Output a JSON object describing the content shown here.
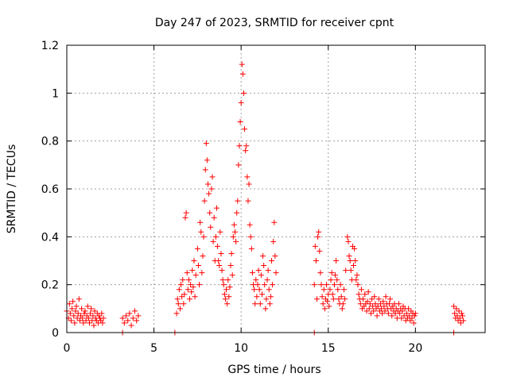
{
  "chart_data": {
    "type": "scatter",
    "title": "Day 247 of 2023, SRMTID for receiver cpnt",
    "xlabel": "GPS time / hours",
    "ylabel": "SRMTID / TECUs",
    "xlim": [
      0,
      24
    ],
    "ylim": [
      0,
      1.2
    ],
    "xticks": [
      0,
      5,
      10,
      15,
      20
    ],
    "xtick_labels": [
      "0",
      "5",
      "10",
      "15",
      "20"
    ],
    "yticks": [
      0,
      0.2,
      0.4,
      0.6,
      0.8,
      1.0,
      1.2
    ],
    "ytick_labels": [
      "0",
      "0.2",
      "0.4",
      "0.6",
      "0.8",
      "1",
      "1.2"
    ],
    "grid": true,
    "marker": "+",
    "series": [
      {
        "name": "SRMTID",
        "color": "#ff0000",
        "points": [
          [
            0.0,
            0.09
          ],
          [
            0.1,
            0.06
          ],
          [
            0.15,
            0.12
          ],
          [
            0.2,
            0.08
          ],
          [
            0.25,
            0.05
          ],
          [
            0.3,
            0.1
          ],
          [
            0.35,
            0.13
          ],
          [
            0.4,
            0.07
          ],
          [
            0.45,
            0.04
          ],
          [
            0.5,
            0.09
          ],
          [
            0.55,
            0.11
          ],
          [
            0.6,
            0.06
          ],
          [
            0.65,
            0.08
          ],
          [
            0.7,
            0.14
          ],
          [
            0.75,
            0.05
          ],
          [
            0.8,
            0.07
          ],
          [
            0.85,
            0.1
          ],
          [
            0.9,
            0.06
          ],
          [
            0.95,
            0.04
          ],
          [
            1.0,
            0.08
          ],
          [
            1.05,
            0.09
          ],
          [
            1.1,
            0.05
          ],
          [
            1.15,
            0.07
          ],
          [
            1.2,
            0.11
          ],
          [
            1.25,
            0.06
          ],
          [
            1.3,
            0.04
          ],
          [
            1.35,
            0.08
          ],
          [
            1.4,
            0.1
          ],
          [
            1.45,
            0.05
          ],
          [
            1.5,
            0.07
          ],
          [
            1.55,
            0.03
          ],
          [
            1.6,
            0.09
          ],
          [
            1.65,
            0.06
          ],
          [
            1.7,
            0.05
          ],
          [
            1.75,
            0.08
          ],
          [
            1.8,
            0.04
          ],
          [
            1.85,
            0.07
          ],
          [
            1.9,
            0.06
          ],
          [
            1.95,
            0.05
          ],
          [
            2.0,
            0.08
          ],
          [
            2.05,
            0.04
          ],
          [
            2.1,
            0.06
          ],
          [
            3.2,
            0.0
          ],
          [
            3.2,
            0.06
          ],
          [
            3.3,
            0.04
          ],
          [
            3.4,
            0.07
          ],
          [
            3.5,
            0.05
          ],
          [
            3.6,
            0.08
          ],
          [
            3.7,
            0.03
          ],
          [
            3.8,
            0.06
          ],
          [
            3.9,
            0.09
          ],
          [
            4.0,
            0.05
          ],
          [
            4.1,
            0.07
          ],
          [
            6.2,
            0.0
          ],
          [
            6.3,
            0.08
          ],
          [
            6.35,
            0.14
          ],
          [
            6.4,
            0.12
          ],
          [
            6.45,
            0.18
          ],
          [
            6.5,
            0.1
          ],
          [
            6.55,
            0.2
          ],
          [
            6.6,
            0.15
          ],
          [
            6.65,
            0.22
          ],
          [
            6.7,
            0.12
          ],
          [
            6.75,
            0.16
          ],
          [
            6.8,
            0.48
          ],
          [
            6.85,
            0.5
          ],
          [
            6.9,
            0.25
          ],
          [
            6.95,
            0.18
          ],
          [
            7.0,
            0.22
          ],
          [
            7.05,
            0.14
          ],
          [
            7.1,
            0.2
          ],
          [
            7.15,
            0.17
          ],
          [
            7.2,
            0.26
          ],
          [
            7.25,
            0.19
          ],
          [
            7.3,
            0.3
          ],
          [
            7.35,
            0.15
          ],
          [
            7.4,
            0.24
          ],
          [
            7.5,
            0.35
          ],
          [
            7.55,
            0.28
          ],
          [
            7.6,
            0.2
          ],
          [
            7.65,
            0.46
          ],
          [
            7.7,
            0.42
          ],
          [
            7.75,
            0.25
          ],
          [
            7.8,
            0.32
          ],
          [
            7.85,
            0.4
          ],
          [
            7.9,
            0.55
          ],
          [
            7.95,
            0.68
          ],
          [
            8.0,
            0.79
          ],
          [
            8.05,
            0.72
          ],
          [
            8.1,
            0.62
          ],
          [
            8.15,
            0.58
          ],
          [
            8.2,
            0.5
          ],
          [
            8.25,
            0.44
          ],
          [
            8.3,
            0.6
          ],
          [
            8.35,
            0.65
          ],
          [
            8.4,
            0.38
          ],
          [
            8.45,
            0.48
          ],
          [
            8.5,
            0.3
          ],
          [
            8.55,
            0.4
          ],
          [
            8.6,
            0.52
          ],
          [
            8.65,
            0.36
          ],
          [
            8.7,
            0.3
          ],
          [
            8.75,
            0.28
          ],
          [
            8.8,
            0.42
          ],
          [
            8.85,
            0.33
          ],
          [
            8.9,
            0.26
          ],
          [
            8.95,
            0.22
          ],
          [
            9.0,
            0.2
          ],
          [
            9.05,
            0.16
          ],
          [
            9.1,
            0.14
          ],
          [
            9.15,
            0.18
          ],
          [
            9.2,
            0.12
          ],
          [
            9.25,
            0.22
          ],
          [
            9.3,
            0.15
          ],
          [
            9.35,
            0.19
          ],
          [
            9.4,
            0.28
          ],
          [
            9.45,
            0.33
          ],
          [
            9.5,
            0.24
          ],
          [
            9.55,
            0.4
          ],
          [
            9.6,
            0.45
          ],
          [
            9.65,
            0.42
          ],
          [
            9.7,
            0.38
          ],
          [
            9.75,
            0.5
          ],
          [
            9.8,
            0.55
          ],
          [
            9.85,
            0.7
          ],
          [
            9.9,
            0.78
          ],
          [
            9.95,
            0.88
          ],
          [
            10.0,
            0.96
          ],
          [
            10.05,
            1.12
          ],
          [
            10.1,
            1.08
          ],
          [
            10.15,
            1.0
          ],
          [
            10.2,
            0.85
          ],
          [
            10.25,
            0.76
          ],
          [
            10.3,
            0.78
          ],
          [
            10.35,
            0.65
          ],
          [
            10.4,
            0.55
          ],
          [
            10.45,
            0.62
          ],
          [
            10.5,
            0.45
          ],
          [
            10.55,
            0.4
          ],
          [
            10.6,
            0.35
          ],
          [
            10.65,
            0.25
          ],
          [
            10.7,
            0.2
          ],
          [
            10.75,
            0.18
          ],
          [
            10.8,
            0.12
          ],
          [
            10.85,
            0.22
          ],
          [
            10.9,
            0.15
          ],
          [
            10.95,
            0.2
          ],
          [
            11.0,
            0.26
          ],
          [
            11.05,
            0.18
          ],
          [
            11.1,
            0.12
          ],
          [
            11.15,
            0.24
          ],
          [
            11.2,
            0.16
          ],
          [
            11.25,
            0.32
          ],
          [
            11.3,
            0.28
          ],
          [
            11.35,
            0.2
          ],
          [
            11.4,
            0.1
          ],
          [
            11.45,
            0.14
          ],
          [
            11.5,
            0.22
          ],
          [
            11.55,
            0.26
          ],
          [
            11.6,
            0.18
          ],
          [
            11.65,
            0.12
          ],
          [
            11.7,
            0.15
          ],
          [
            11.75,
            0.3
          ],
          [
            11.8,
            0.2
          ],
          [
            11.85,
            0.38
          ],
          [
            11.9,
            0.46
          ],
          [
            11.95,
            0.32
          ],
          [
            12.0,
            0.25
          ],
          [
            14.2,
            0.0
          ],
          [
            14.2,
            0.2
          ],
          [
            14.25,
            0.36
          ],
          [
            14.3,
            0.3
          ],
          [
            14.35,
            0.14
          ],
          [
            14.4,
            0.4
          ],
          [
            14.45,
            0.42
          ],
          [
            14.5,
            0.34
          ],
          [
            14.55,
            0.25
          ],
          [
            14.6,
            0.2
          ],
          [
            14.65,
            0.15
          ],
          [
            14.7,
            0.12
          ],
          [
            14.75,
            0.18
          ],
          [
            14.8,
            0.1
          ],
          [
            14.85,
            0.14
          ],
          [
            14.9,
            0.2
          ],
          [
            14.95,
            0.13
          ],
          [
            15.0,
            0.16
          ],
          [
            15.05,
            0.11
          ],
          [
            15.1,
            0.18
          ],
          [
            15.15,
            0.22
          ],
          [
            15.2,
            0.25
          ],
          [
            15.25,
            0.16
          ],
          [
            15.3,
            0.14
          ],
          [
            15.35,
            0.2
          ],
          [
            15.4,
            0.24
          ],
          [
            15.45,
            0.3
          ],
          [
            15.5,
            0.22
          ],
          [
            15.55,
            0.18
          ],
          [
            15.6,
            0.14
          ],
          [
            15.65,
            0.12
          ],
          [
            15.7,
            0.2
          ],
          [
            15.75,
            0.15
          ],
          [
            15.8,
            0.1
          ],
          [
            15.85,
            0.12
          ],
          [
            15.9,
            0.18
          ],
          [
            15.95,
            0.14
          ],
          [
            16.0,
            0.26
          ],
          [
            16.1,
            0.4
          ],
          [
            16.15,
            0.38
          ],
          [
            16.2,
            0.32
          ],
          [
            16.25,
            0.3
          ],
          [
            16.3,
            0.26
          ],
          [
            16.35,
            0.22
          ],
          [
            16.4,
            0.36
          ],
          [
            16.45,
            0.28
          ],
          [
            16.5,
            0.35
          ],
          [
            16.55,
            0.3
          ],
          [
            16.6,
            0.22
          ],
          [
            16.65,
            0.24
          ],
          [
            16.7,
            0.2
          ],
          [
            16.75,
            0.16
          ],
          [
            16.8,
            0.14
          ],
          [
            16.85,
            0.12
          ],
          [
            16.9,
            0.18
          ],
          [
            16.95,
            0.1
          ],
          [
            17.0,
            0.14
          ],
          [
            17.05,
            0.11
          ],
          [
            17.1,
            0.16
          ],
          [
            17.15,
            0.12
          ],
          [
            17.2,
            0.09
          ],
          [
            17.25,
            0.13
          ],
          [
            17.3,
            0.17
          ],
          [
            17.35,
            0.1
          ],
          [
            17.4,
            0.12
          ],
          [
            17.45,
            0.08
          ],
          [
            17.5,
            0.14
          ],
          [
            17.55,
            0.11
          ],
          [
            17.6,
            0.09
          ],
          [
            17.65,
            0.15
          ],
          [
            17.7,
            0.12
          ],
          [
            17.75,
            0.1
          ],
          [
            17.8,
            0.07
          ],
          [
            17.85,
            0.11
          ],
          [
            17.9,
            0.14
          ],
          [
            17.95,
            0.09
          ],
          [
            18.0,
            0.12
          ],
          [
            18.05,
            0.1
          ],
          [
            18.1,
            0.08
          ],
          [
            18.15,
            0.13
          ],
          [
            18.2,
            0.11
          ],
          [
            18.25,
            0.09
          ],
          [
            18.3,
            0.15
          ],
          [
            18.35,
            0.12
          ],
          [
            18.4,
            0.1
          ],
          [
            18.45,
            0.08
          ],
          [
            18.5,
            0.12
          ],
          [
            18.55,
            0.14
          ],
          [
            18.6,
            0.1
          ],
          [
            18.65,
            0.07
          ],
          [
            18.7,
            0.11
          ],
          [
            18.75,
            0.09
          ],
          [
            18.8,
            0.12
          ],
          [
            18.85,
            0.08
          ],
          [
            18.9,
            0.1
          ],
          [
            18.95,
            0.06
          ],
          [
            19.0,
            0.09
          ],
          [
            19.05,
            0.12
          ],
          [
            19.1,
            0.08
          ],
          [
            19.15,
            0.1
          ],
          [
            19.2,
            0.06
          ],
          [
            19.25,
            0.09
          ],
          [
            19.3,
            0.11
          ],
          [
            19.35,
            0.07
          ],
          [
            19.4,
            0.1
          ],
          [
            19.45,
            0.05
          ],
          [
            19.5,
            0.08
          ],
          [
            19.55,
            0.06
          ],
          [
            19.6,
            0.1
          ],
          [
            19.65,
            0.07
          ],
          [
            19.7,
            0.05
          ],
          [
            19.75,
            0.09
          ],
          [
            19.8,
            0.06
          ],
          [
            19.85,
            0.08
          ],
          [
            19.9,
            0.04
          ],
          [
            19.95,
            0.07
          ],
          [
            20.0,
            0.08
          ],
          [
            22.2,
            0.0
          ],
          [
            22.2,
            0.11
          ],
          [
            22.25,
            0.08
          ],
          [
            22.3,
            0.06
          ],
          [
            22.35,
            0.1
          ],
          [
            22.4,
            0.07
          ],
          [
            22.45,
            0.05
          ],
          [
            22.5,
            0.09
          ],
          [
            22.55,
            0.06
          ],
          [
            22.6,
            0.04
          ],
          [
            22.65,
            0.08
          ],
          [
            22.7,
            0.07
          ],
          [
            22.75,
            0.05
          ]
        ]
      }
    ]
  }
}
